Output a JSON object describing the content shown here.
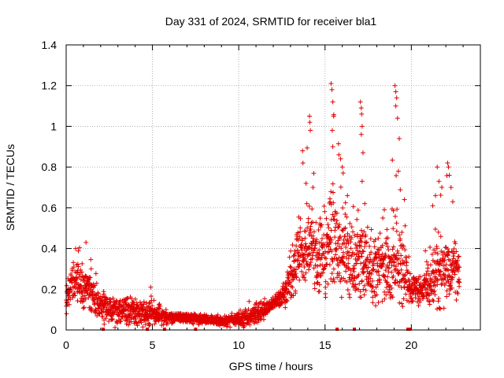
{
  "chart_data": {
    "type": "scatter",
    "title": "Day 331 of 2024, SRMTID for receiver bla1",
    "xlabel": "GPS time / hours",
    "ylabel": "SRMTID / TECUs",
    "xlim": [
      0,
      24
    ],
    "ylim": [
      0,
      1.4
    ],
    "x_ticks": [
      0,
      5,
      10,
      15,
      20
    ],
    "x_tick_labels": [
      "0",
      "5",
      "10",
      "15",
      "20"
    ],
    "y_ticks": [
      0,
      0.2,
      0.4,
      0.6,
      0.8,
      1.0,
      1.2,
      1.4
    ],
    "y_tick_labels": [
      "0",
      "0.2",
      "0.4",
      "0.6",
      "0.8",
      "1",
      "1.2",
      "1.4"
    ],
    "grid": true,
    "marker": "plus",
    "colors": {
      "series": "#e00000",
      "grid": "#a0a0a0",
      "axis": "#000000"
    },
    "series": [
      {
        "name": "bla1 SRMTID",
        "envelope": [
          {
            "x": 0.0,
            "y_mean": 0.15,
            "y_spread": 0.06,
            "y_max": 0.2
          },
          {
            "x": 0.4,
            "y_mean": 0.25,
            "y_spread": 0.09,
            "y_max": 0.4
          },
          {
            "x": 1.1,
            "y_mean": 0.22,
            "y_spread": 0.09,
            "y_max": 0.43
          },
          {
            "x": 2.0,
            "y_mean": 0.12,
            "y_spread": 0.06,
            "y_max": 0.25
          },
          {
            "x": 3.0,
            "y_mean": 0.09,
            "y_spread": 0.05,
            "y_max": 0.18
          },
          {
            "x": 4.0,
            "y_mean": 0.09,
            "y_spread": 0.05,
            "y_max": 0.17
          },
          {
            "x": 5.0,
            "y_mean": 0.08,
            "y_spread": 0.05,
            "y_max": 0.21
          },
          {
            "x": 6.0,
            "y_mean": 0.06,
            "y_spread": 0.02,
            "y_max": 0.08
          },
          {
            "x": 7.0,
            "y_mean": 0.06,
            "y_spread": 0.02,
            "y_max": 0.08
          },
          {
            "x": 8.0,
            "y_mean": 0.05,
            "y_spread": 0.02,
            "y_max": 0.08
          },
          {
            "x": 9.0,
            "y_mean": 0.045,
            "y_spread": 0.02,
            "y_max": 0.08
          },
          {
            "x": 10.0,
            "y_mean": 0.05,
            "y_spread": 0.03,
            "y_max": 0.1
          },
          {
            "x": 11.0,
            "y_mean": 0.07,
            "y_spread": 0.04,
            "y_max": 0.14
          },
          {
            "x": 12.0,
            "y_mean": 0.13,
            "y_spread": 0.03,
            "y_max": 0.18
          },
          {
            "x": 12.5,
            "y_mean": 0.16,
            "y_spread": 0.03,
            "y_max": 0.2
          },
          {
            "x": 13.0,
            "y_mean": 0.24,
            "y_spread": 0.1,
            "y_max": 0.45
          },
          {
            "x": 13.5,
            "y_mean": 0.4,
            "y_spread": 0.15,
            "y_max": 0.88
          },
          {
            "x": 14.0,
            "y_mean": 0.4,
            "y_spread": 0.16,
            "y_max": 1.05
          },
          {
            "x": 14.5,
            "y_mean": 0.36,
            "y_spread": 0.15,
            "y_max": 0.7
          },
          {
            "x": 15.0,
            "y_mean": 0.36,
            "y_spread": 0.16,
            "y_max": 0.75
          },
          {
            "x": 15.4,
            "y_mean": 0.45,
            "y_spread": 0.2,
            "y_max": 1.22
          },
          {
            "x": 16.0,
            "y_mean": 0.4,
            "y_spread": 0.17,
            "y_max": 0.86
          },
          {
            "x": 16.5,
            "y_mean": 0.33,
            "y_spread": 0.14,
            "y_max": 0.62
          },
          {
            "x": 17.0,
            "y_mean": 0.36,
            "y_spread": 0.17,
            "y_max": 1.12
          },
          {
            "x": 17.5,
            "y_mean": 0.3,
            "y_spread": 0.13,
            "y_max": 0.6
          },
          {
            "x": 18.0,
            "y_mean": 0.28,
            "y_spread": 0.13,
            "y_max": 0.55
          },
          {
            "x": 18.5,
            "y_mean": 0.32,
            "y_spread": 0.14,
            "y_max": 0.6
          },
          {
            "x": 19.0,
            "y_mean": 0.33,
            "y_spread": 0.14,
            "y_max": 1.2
          },
          {
            "x": 19.5,
            "y_mean": 0.3,
            "y_spread": 0.13,
            "y_max": 0.65
          },
          {
            "x": 20.0,
            "y_mean": 0.2,
            "y_spread": 0.07,
            "y_max": 0.35
          },
          {
            "x": 20.5,
            "y_mean": 0.2,
            "y_spread": 0.06,
            "y_max": 0.3
          },
          {
            "x": 21.0,
            "y_mean": 0.22,
            "y_spread": 0.07,
            "y_max": 0.45
          },
          {
            "x": 21.5,
            "y_mean": 0.3,
            "y_spread": 0.14,
            "y_max": 0.8
          },
          {
            "x": 22.0,
            "y_mean": 0.3,
            "y_spread": 0.14,
            "y_max": 0.82
          },
          {
            "x": 22.5,
            "y_mean": 0.3,
            "y_spread": 0.1,
            "y_max": 0.52
          },
          {
            "x": 22.8,
            "y_mean": 0.28,
            "y_spread": 0.08,
            "y_max": 0.45
          }
        ],
        "spikes": [
          {
            "x": 0.55,
            "y": 0.4
          },
          {
            "x": 1.15,
            "y": 0.43
          },
          {
            "x": 1.45,
            "y": 0.3
          },
          {
            "x": 4.9,
            "y": 0.21
          },
          {
            "x": 10.6,
            "y": 0.14
          },
          {
            "x": 13.7,
            "y": 0.88
          },
          {
            "x": 13.72,
            "y": 0.82
          },
          {
            "x": 13.9,
            "y": 0.72
          },
          {
            "x": 14.1,
            "y": 1.05
          },
          {
            "x": 14.12,
            "y": 1.02
          },
          {
            "x": 14.15,
            "y": 0.98
          },
          {
            "x": 14.3,
            "y": 0.7
          },
          {
            "x": 15.35,
            "y": 1.21
          },
          {
            "x": 15.4,
            "y": 1.18
          },
          {
            "x": 15.45,
            "y": 1.12
          },
          {
            "x": 15.5,
            "y": 1.05
          },
          {
            "x": 15.42,
            "y": 0.98
          },
          {
            "x": 15.45,
            "y": 0.9
          },
          {
            "x": 15.8,
            "y": 0.86
          },
          {
            "x": 15.9,
            "y": 0.84
          },
          {
            "x": 16.0,
            "y": 0.8
          },
          {
            "x": 16.05,
            "y": 0.77
          },
          {
            "x": 16.3,
            "y": 0.66
          },
          {
            "x": 17.05,
            "y": 1.12
          },
          {
            "x": 17.1,
            "y": 1.09
          },
          {
            "x": 17.12,
            "y": 1.06
          },
          {
            "x": 17.15,
            "y": 1.0
          },
          {
            "x": 17.1,
            "y": 0.96
          },
          {
            "x": 17.2,
            "y": 0.87
          },
          {
            "x": 17.15,
            "y": 0.73
          },
          {
            "x": 17.3,
            "y": 0.62
          },
          {
            "x": 19.05,
            "y": 1.2
          },
          {
            "x": 19.1,
            "y": 1.17
          },
          {
            "x": 19.15,
            "y": 1.14
          },
          {
            "x": 19.1,
            "y": 1.1
          },
          {
            "x": 19.2,
            "y": 1.04
          },
          {
            "x": 19.3,
            "y": 0.94
          },
          {
            "x": 19.25,
            "y": 0.78
          },
          {
            "x": 19.6,
            "y": 0.64
          },
          {
            "x": 21.5,
            "y": 0.8
          },
          {
            "x": 21.6,
            "y": 0.73
          },
          {
            "x": 21.4,
            "y": 0.66
          },
          {
            "x": 22.1,
            "y": 0.82
          },
          {
            "x": 22.15,
            "y": 0.8
          },
          {
            "x": 22.2,
            "y": 0.76
          },
          {
            "x": 22.3,
            "y": 0.7
          },
          {
            "x": 22.4,
            "y": 0.63
          }
        ],
        "zero_markers_x": [
          2.15,
          4.7,
          5.7,
          7.5,
          15.7,
          16.7,
          19.8,
          19.9
        ]
      }
    ]
  }
}
